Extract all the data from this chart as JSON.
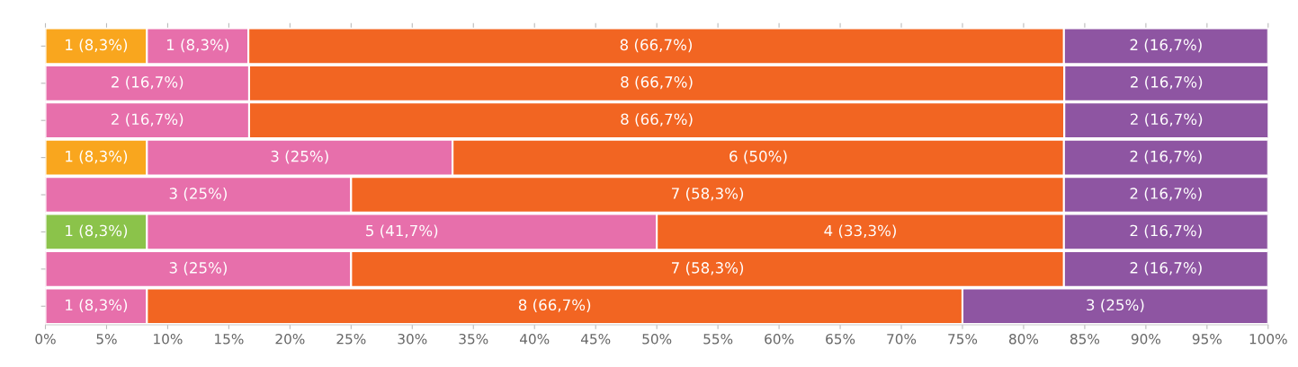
{
  "chart_data": {
    "type": "bar",
    "orientation": "horizontal",
    "stacked": true,
    "tick_labels": "x",
    "grid": false,
    "legend": false,
    "categories": [
      null,
      null,
      null,
      null,
      null,
      null,
      null,
      null
    ],
    "xlim": [
      0,
      100
    ],
    "xticks": [
      {
        "value": 0,
        "label": "0%"
      },
      {
        "value": 5,
        "label": "5%"
      },
      {
        "value": 10,
        "label": "10%"
      },
      {
        "value": 15,
        "label": "15%"
      },
      {
        "value": 20,
        "label": "20%"
      },
      {
        "value": 25,
        "label": "25%"
      },
      {
        "value": 30,
        "label": "30%"
      },
      {
        "value": 35,
        "label": "35%"
      },
      {
        "value": 40,
        "label": "40%"
      },
      {
        "value": 45,
        "label": "45%"
      },
      {
        "value": 50,
        "label": "50%"
      },
      {
        "value": 55,
        "label": "55%"
      },
      {
        "value": 60,
        "label": "60%"
      },
      {
        "value": 65,
        "label": "65%"
      },
      {
        "value": 70,
        "label": "70%"
      },
      {
        "value": 75,
        "label": "75%"
      },
      {
        "value": 80,
        "label": "80%"
      },
      {
        "value": 85,
        "label": "85%"
      },
      {
        "value": 90,
        "label": "90%"
      },
      {
        "value": 95,
        "label": "95%"
      },
      {
        "value": 100,
        "label": "100%"
      }
    ],
    "series": [
      {
        "color": "#f9a61e",
        "values": [
          8.3,
          null,
          null,
          8.3,
          null,
          null,
          null,
          null
        ],
        "value_labels": [
          "1 (8,3%)",
          null,
          null,
          "1 (8,3%)",
          null,
          null,
          null,
          null
        ]
      },
      {
        "color": "#8bc34a",
        "values": [
          null,
          null,
          null,
          null,
          null,
          8.3,
          null,
          null
        ],
        "value_labels": [
          null,
          null,
          null,
          null,
          null,
          "1 (8,3%)",
          null,
          null
        ]
      },
      {
        "color": "#e76fab",
        "values": [
          8.3,
          16.66,
          16.66,
          25,
          25,
          41.7,
          25,
          8.3
        ],
        "value_labels": [
          "1 (8,3%)",
          "2 (16,7%)",
          "2 (16,7%)",
          "3 (25%)",
          "3 (25%)",
          "5 (41,7%)",
          "3 (25%)",
          "1 (8,3%)"
        ]
      },
      {
        "color": "#f26522",
        "values": [
          66.7,
          66.67,
          66.67,
          50,
          58.3,
          33.3,
          58.3,
          66.7
        ],
        "value_labels": [
          "8 (66,7%)",
          "8 (66,7%)",
          "8 (66,7%)",
          "6 (50%)",
          "7 (58,3%)",
          "4 (33,3%)",
          "7 (58,3%)",
          "8 (66,7%)"
        ]
      },
      {
        "color": "#8e55a2",
        "values": [
          16.7,
          16.7,
          16.7,
          16.7,
          16.7,
          16.7,
          16.7,
          25
        ],
        "value_labels": [
          "2 (16,7%)",
          "2 (16,7%)",
          "2 (16,7%)",
          "2 (16,7%)",
          "2 (16,7%)",
          "2 (16,7%)",
          "2 (16,7%)",
          "3 (25%)"
        ]
      }
    ]
  }
}
